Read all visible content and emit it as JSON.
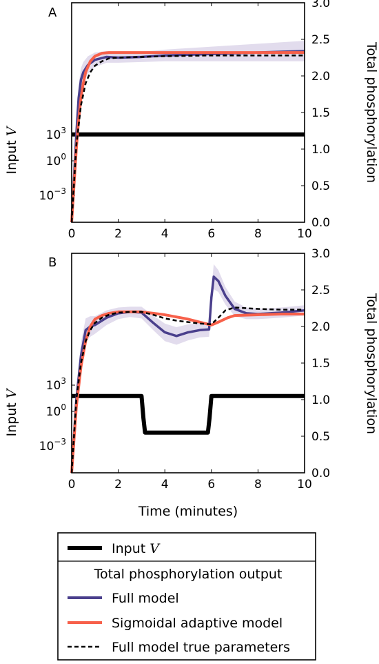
{
  "figure_axis_label": "Time (minutes)",
  "legend": {
    "top_item": "Input V",
    "section_title": "Total phosphorylation output",
    "items": [
      "Full model",
      "Sigmoidal adaptive model",
      "Full model true parameters"
    ]
  },
  "colors": {
    "full_model": "#4a3f8c",
    "sigmoidal": "#f7604a",
    "true_params": "#000000",
    "band": "#ddd6ea",
    "input": "#000000"
  },
  "chart_data": [
    {
      "type": "line",
      "panel_label": "A",
      "xlabel": "Time (minutes)",
      "ylabel_left": "Input V",
      "ylabel_right": "Total phosphorylation",
      "xlim": [
        0,
        10
      ],
      "ylim_right": [
        0,
        3.0
      ],
      "xticks": [
        "0",
        "2",
        "4",
        "6",
        "8",
        "10"
      ],
      "yticks_right": [
        "0.0",
        "0.5",
        "1.0",
        "1.5",
        "2.0",
        "2.5",
        "3.0"
      ],
      "yticks_left": [
        "10^3",
        "10^0",
        "10^-3"
      ],
      "input_levels": {
        "high": 1.2,
        "low": 0.54
      },
      "series": [
        {
          "name": "Input V",
          "x": [
            0,
            10
          ],
          "y": [
            1.2,
            1.2
          ]
        },
        {
          "name": "Full model",
          "x": [
            0,
            0.1,
            0.2,
            0.3,
            0.4,
            0.5,
            0.7,
            1.0,
            1.5,
            2,
            3,
            4,
            5,
            6,
            7,
            8,
            9,
            10
          ],
          "y": [
            0,
            0.6,
            1.2,
            1.7,
            1.95,
            2.05,
            2.15,
            2.22,
            2.26,
            2.25,
            2.26,
            2.28,
            2.29,
            2.3,
            2.31,
            2.32,
            2.33,
            2.34
          ],
          "band": [
            0.12,
            0.15,
            0.18,
            0.18,
            0.16,
            0.14,
            0.12,
            0.1,
            0.08,
            0.07,
            0.07,
            0.08,
            0.09,
            0.1,
            0.11,
            0.12,
            0.13,
            0.14
          ]
        },
        {
          "name": "Sigmoidal adaptive model",
          "x": [
            0,
            0.1,
            0.2,
            0.3,
            0.4,
            0.5,
            0.6,
            0.8,
            1.0,
            1.3,
            1.6,
            2,
            4,
            6,
            8,
            10
          ],
          "y": [
            0,
            0.5,
            1.0,
            1.4,
            1.7,
            1.9,
            2.05,
            2.2,
            2.27,
            2.31,
            2.32,
            2.32,
            2.32,
            2.32,
            2.32,
            2.32
          ]
        },
        {
          "name": "Full model true parameters",
          "x": [
            0,
            0.2,
            0.4,
            0.6,
            0.8,
            1.0,
            1.3,
            1.6,
            2,
            3,
            4,
            6,
            8,
            10
          ],
          "y": [
            0,
            1.05,
            1.6,
            1.9,
            2.05,
            2.14,
            2.2,
            2.24,
            2.25,
            2.26,
            2.27,
            2.28,
            2.28,
            2.28
          ]
        }
      ]
    },
    {
      "type": "line",
      "panel_label": "B",
      "xlabel": "Time (minutes)",
      "ylabel_left": "Input V",
      "ylabel_right": "Total phosphorylation",
      "xlim": [
        0,
        10
      ],
      "ylim_right": [
        0,
        3.0
      ],
      "xticks": [
        "0",
        "2",
        "4",
        "6",
        "8",
        "10"
      ],
      "yticks_right": [
        "0.0",
        "0.5",
        "1.0",
        "1.5",
        "2.0",
        "2.5",
        "3.0"
      ],
      "yticks_left": [
        "10^3",
        "10^0",
        "10^-3"
      ],
      "input_levels": {
        "high": 1.05,
        "low": 0.55
      },
      "series": [
        {
          "name": "Input V",
          "x": [
            0,
            3.0,
            3.08,
            3.15,
            5.85,
            5.92,
            6.0,
            10
          ],
          "y": [
            1.05,
            1.05,
            0.75,
            0.55,
            0.55,
            0.75,
            1.05,
            1.05
          ]
        },
        {
          "name": "Full model",
          "x": [
            0,
            0.2,
            0.4,
            0.6,
            0.8,
            1.0,
            1.5,
            2,
            2.5,
            3,
            3.5,
            4,
            4.5,
            5,
            5.5,
            5.9,
            6.0,
            6.1,
            6.3,
            6.6,
            7,
            7.5,
            8,
            9,
            10
          ],
          "y": [
            0,
            1.0,
            1.6,
            1.95,
            2.0,
            2.02,
            2.12,
            2.18,
            2.2,
            2.19,
            2.05,
            1.92,
            1.87,
            1.92,
            1.95,
            1.96,
            2.4,
            2.68,
            2.62,
            2.42,
            2.24,
            2.18,
            2.17,
            2.19,
            2.22
          ],
          "band": [
            0.12,
            0.15,
            0.18,
            0.16,
            0.14,
            0.12,
            0.1,
            0.08,
            0.07,
            0.08,
            0.1,
            0.12,
            0.12,
            0.11,
            0.1,
            0.1,
            0.12,
            0.17,
            0.15,
            0.12,
            0.1,
            0.08,
            0.07,
            0.07,
            0.07
          ]
        },
        {
          "name": "Sigmoidal adaptive model",
          "x": [
            0,
            0.2,
            0.4,
            0.6,
            0.8,
            1.0,
            1.3,
            1.6,
            2,
            2.5,
            3,
            3.5,
            4,
            4.5,
            5,
            5.5,
            6,
            6.3,
            6.7,
            7,
            8,
            9,
            10
          ],
          "y": [
            0,
            0.9,
            1.45,
            1.8,
            2.0,
            2.1,
            2.15,
            2.18,
            2.2,
            2.2,
            2.2,
            2.18,
            2.16,
            2.13,
            2.1,
            2.06,
            2.02,
            2.06,
            2.12,
            2.15,
            2.16,
            2.17,
            2.17
          ]
        },
        {
          "name": "Full model true parameters",
          "x": [
            0,
            0.2,
            0.4,
            0.6,
            0.8,
            1.0,
            1.3,
            1.6,
            2,
            2.5,
            3,
            3.5,
            4,
            4.5,
            5,
            5.5,
            6,
            6.3,
            6.6,
            7,
            8,
            9,
            10
          ],
          "y": [
            0,
            1.0,
            1.5,
            1.8,
            1.95,
            2.05,
            2.12,
            2.16,
            2.19,
            2.2,
            2.2,
            2.16,
            2.11,
            2.08,
            2.06,
            2.04,
            2.03,
            2.12,
            2.22,
            2.26,
            2.24,
            2.23,
            2.23
          ]
        }
      ]
    }
  ]
}
